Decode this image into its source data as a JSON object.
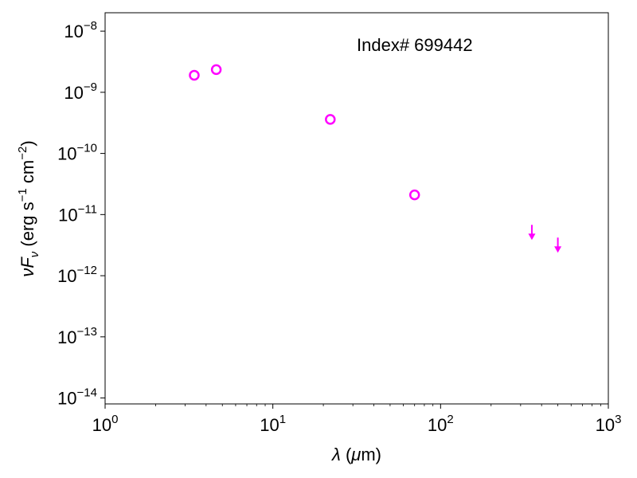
{
  "chart_data": {
    "type": "scatter",
    "xscale": "log",
    "yscale": "log",
    "xlim": [
      1,
      1000
    ],
    "ylim": [
      8e-15,
      2e-08
    ],
    "xlabel": "λ (μm)",
    "ylabel": "νFν (erg s−1 cm−2)",
    "annotation": "Index# 699442",
    "color": "#ff00ff",
    "grid": false,
    "x_ticks": [
      {
        "value": 1,
        "base": "10",
        "exp": "0"
      },
      {
        "value": 10,
        "base": "10",
        "exp": "1"
      },
      {
        "value": 100,
        "base": "10",
        "exp": "2"
      },
      {
        "value": 1000,
        "base": "10",
        "exp": "3"
      }
    ],
    "y_ticks": [
      {
        "value": 1e-14,
        "base": "10",
        "exp": "−14"
      },
      {
        "value": 1e-13,
        "base": "10",
        "exp": "−13"
      },
      {
        "value": 1e-12,
        "base": "10",
        "exp": "−12"
      },
      {
        "value": 1e-11,
        "base": "10",
        "exp": "−11"
      },
      {
        "value": 1e-10,
        "base": "10",
        "exp": "−10"
      },
      {
        "value": 1e-09,
        "base": "10",
        "exp": "−9"
      },
      {
        "value": 1e-08,
        "base": "10",
        "exp": "−8"
      }
    ],
    "detections": [
      {
        "x": 3.4,
        "y": 1.9e-09
      },
      {
        "x": 4.6,
        "y": 2.35e-09
      },
      {
        "x": 22,
        "y": 3.6e-10
      },
      {
        "x": 70,
        "y": 2.1e-11
      }
    ],
    "upper_limits": [
      {
        "x": 350,
        "y": 4.2e-12
      },
      {
        "x": 500,
        "y": 2.6e-12
      }
    ]
  }
}
